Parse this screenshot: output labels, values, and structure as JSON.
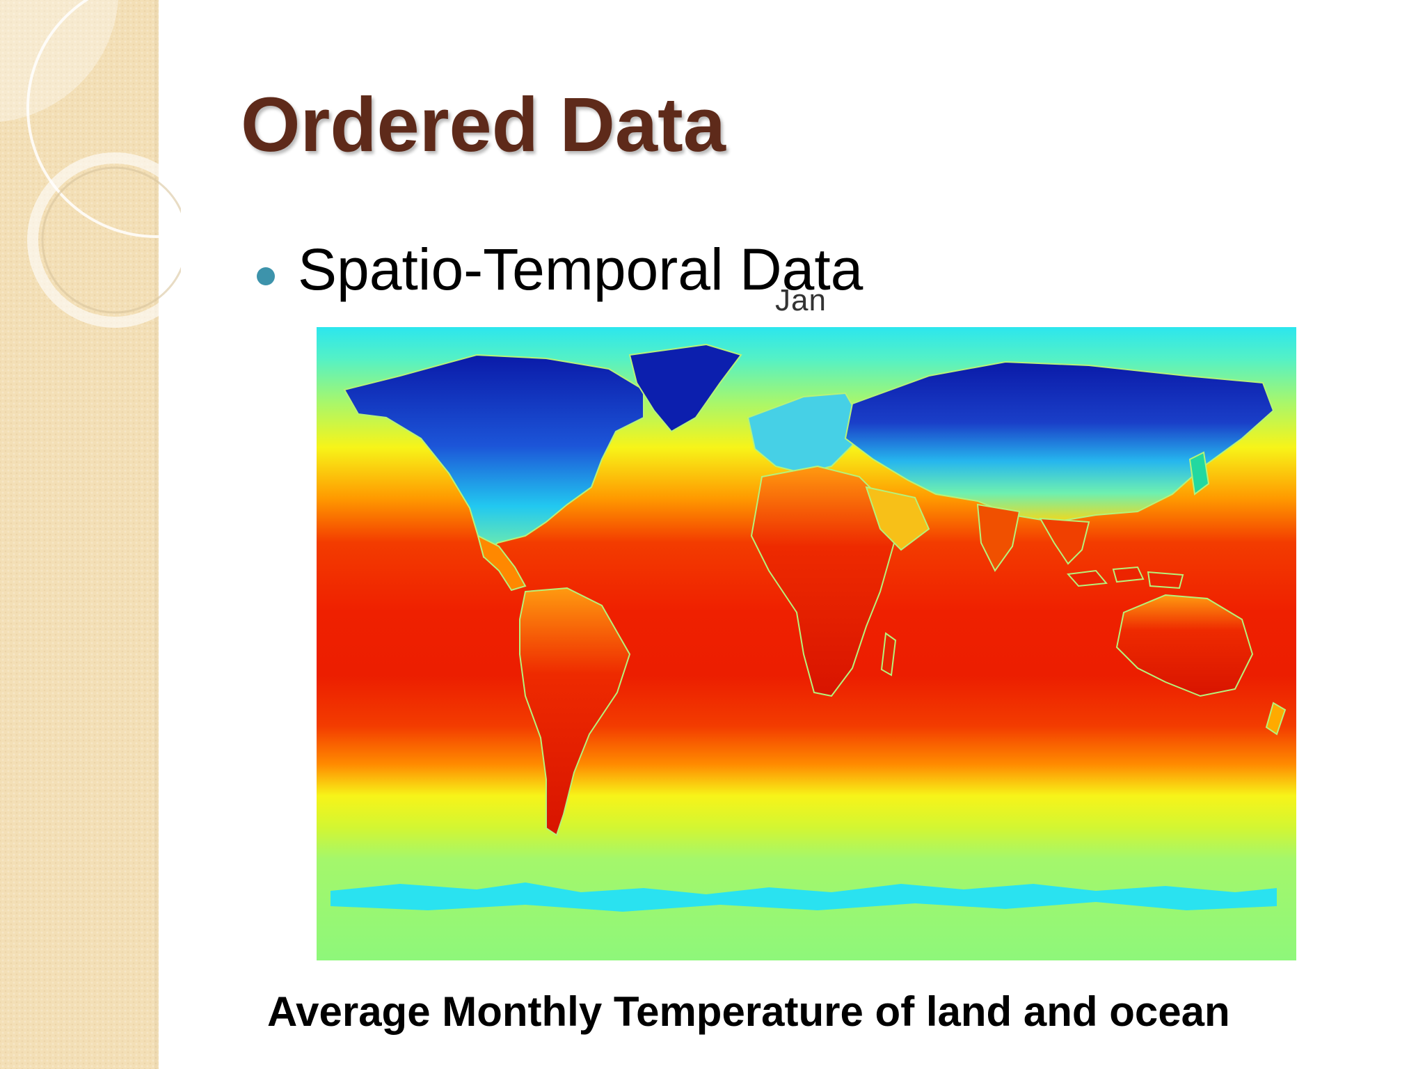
{
  "slide": {
    "title": "Ordered Data",
    "bullet": "Spatio-Temporal Data",
    "caption": "Average Monthly Temperature of land and ocean"
  },
  "map": {
    "month_label": "Jan",
    "colors": {
      "coldest": "#0a1aa8",
      "cold": "#1f6de0",
      "cool": "#22e6f0",
      "mild": "#8ef77a",
      "warm": "#f7f419",
      "hot": "#ff8c00",
      "hotter": "#f32a00",
      "hottest": "#c40f00",
      "coastline": "#b6f27a"
    }
  },
  "theme": {
    "title_color": "#5e2a1a",
    "bullet_color": "#3d93ab",
    "side_panel_color": "#f3dfb6"
  }
}
